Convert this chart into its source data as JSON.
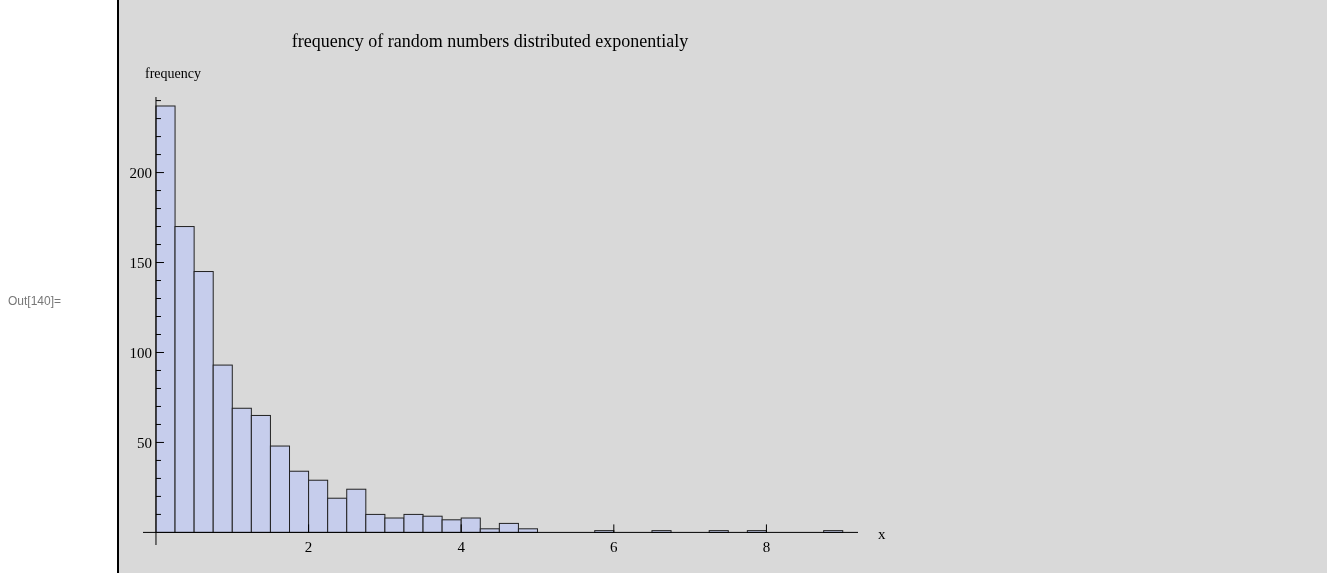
{
  "chart_data": {
    "type": "histogram",
    "title": "frequency of random numbers distributed exponentialy",
    "xlabel": "x",
    "ylabel": "frequency",
    "annotations": [
      "Out[140]="
    ],
    "bins": [
      0,
      0.25,
      0.5,
      0.75,
      1,
      1.25,
      1.5,
      1.75,
      2,
      2.25,
      2.5,
      2.75,
      3,
      3.25,
      3.5,
      3.75,
      4,
      4.25,
      4.5,
      4.75,
      5,
      5.25,
      5.5,
      5.75,
      6,
      6.25,
      6.5,
      6.75,
      7,
      7.25,
      7.5,
      7.75,
      8,
      8.25,
      8.5,
      8.75,
      9
    ],
    "values": [
      237,
      170,
      145,
      93,
      69,
      65,
      48,
      34,
      29,
      19,
      24,
      10,
      8,
      10,
      9,
      7,
      8,
      2,
      5,
      2,
      0,
      0,
      0,
      1,
      0,
      0,
      1,
      0,
      0,
      1,
      0,
      1,
      0,
      0,
      0,
      1
    ],
    "color": "#c6cdec",
    "xlim": [
      -0.17,
      9.2
    ],
    "ylim": [
      -7,
      242
    ],
    "xticks": [
      2,
      4,
      6,
      8
    ],
    "yticks": [
      {
        "value": 10,
        "label": null
      },
      {
        "value": 20,
        "label": null
      },
      {
        "value": 30,
        "label": null
      },
      {
        "value": 40,
        "label": null
      },
      50,
      {
        "value": 60,
        "label": null
      },
      {
        "value": 70,
        "label": null
      },
      {
        "value": 80,
        "label": null
      },
      {
        "value": 90,
        "label": null
      },
      100,
      {
        "value": 110,
        "label": null
      },
      {
        "value": 120,
        "label": null
      },
      {
        "value": 130,
        "label": null
      },
      {
        "value": 140,
        "label": null
      },
      150,
      {
        "value": 160,
        "label": null
      },
      {
        "value": 170,
        "label": null
      },
      {
        "value": 180,
        "label": null
      },
      {
        "value": 190,
        "label": null
      },
      200,
      {
        "value": 210,
        "label": null
      },
      {
        "value": 220,
        "label": null
      },
      {
        "value": 230,
        "label": null
      },
      {
        "value": 240,
        "label": null
      }
    ],
    "grid": false
  }
}
